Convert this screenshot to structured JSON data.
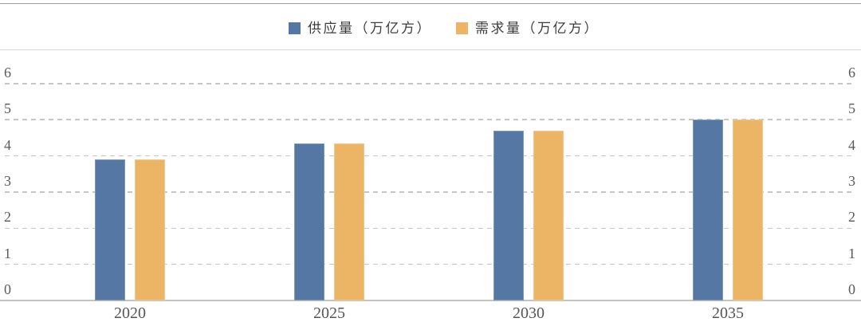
{
  "legend": {
    "items": [
      {
        "label": "供应量（万亿方）",
        "color": "#5477A3"
      },
      {
        "label": "需求量（万亿方）",
        "color": "#ECB565"
      }
    ]
  },
  "chart_data": {
    "type": "bar",
    "title": "",
    "xlabel": "",
    "ylabel": "",
    "categories": [
      "2020",
      "2025",
      "2030",
      "2035"
    ],
    "series": [
      {
        "name": "供应量（万亿方）",
        "color": "#5477A3",
        "values": [
          3.9,
          4.35,
          4.7,
          5.0
        ]
      },
      {
        "name": "需求量（万亿方）",
        "color": "#ECB565",
        "values": [
          3.9,
          4.35,
          4.7,
          5.0
        ]
      }
    ],
    "ylim": [
      0,
      6
    ],
    "yticks": [
      0,
      1,
      2,
      3,
      4,
      5,
      6
    ],
    "y_axis_sides": "both",
    "grid": "horizontal-dashed",
    "legend_position": "top-center"
  }
}
